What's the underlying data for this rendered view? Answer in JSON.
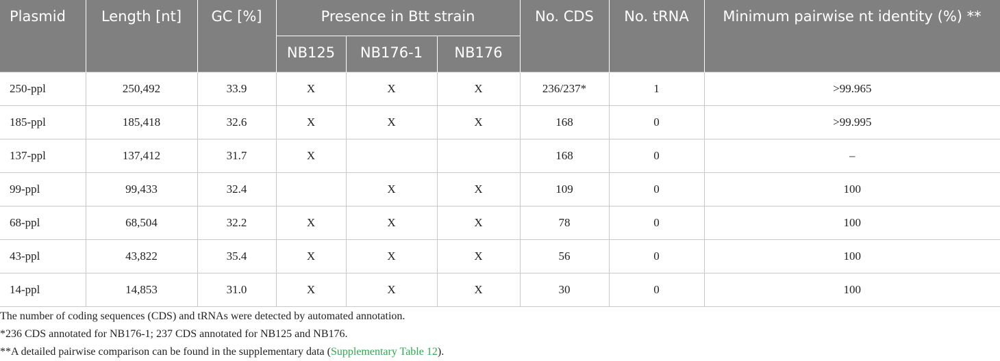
{
  "table": {
    "header": {
      "top": [
        "Plasmid",
        "Length [nt]",
        "GC [%]",
        "Presence in Btt strain",
        "No. CDS",
        "No. tRNA",
        "Minimum pairwise nt identity (%) **"
      ],
      "sub": [
        "NB125",
        "NB176-1",
        "NB176"
      ]
    },
    "rows": [
      [
        "250-ppl",
        "250,492",
        "33.9",
        "X",
        "X",
        "X",
        "236/237*",
        "1",
        ">99.965"
      ],
      [
        "185-ppl",
        "185,418",
        "32.6",
        "X",
        "X",
        "X",
        "168",
        "0",
        ">99.995"
      ],
      [
        "137-ppl",
        "137,412",
        "31.7",
        "X",
        null,
        null,
        "168",
        "0",
        "–"
      ],
      [
        "99-ppl",
        "99,433",
        "32.4",
        null,
        "X",
        "X",
        "109",
        "0",
        "100"
      ],
      [
        "68-ppl",
        "68,504",
        "32.2",
        "X",
        "X",
        "X",
        "78",
        "0",
        "100"
      ],
      [
        "43-ppl",
        "43,822",
        "35.4",
        "X",
        "X",
        "X",
        "56",
        "0",
        "100"
      ],
      [
        "14-ppl",
        "14,853",
        "31.0",
        "X",
        "X",
        "X",
        "30",
        "0",
        "100"
      ]
    ]
  },
  "notes": [
    "The number of coding sequences (CDS) and tRNAs were detected by automated annotation.",
    "*236 CDS annotated for NB176-1; 237 CDS annotated for NB125 and NB176.",
    [
      "**A detailed pairwise comparison can be found in the supplementary data (",
      "Supplementary Table 12",
      ")."
    ]
  ]
}
